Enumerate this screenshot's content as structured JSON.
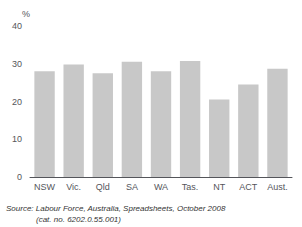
{
  "chart_data": {
    "type": "bar",
    "categories": [
      "NSW",
      "Vic.",
      "Qld",
      "SA",
      "WA",
      "Tas.",
      "NT",
      "ACT",
      "Aust."
    ],
    "values": [
      28.0,
      29.8,
      27.5,
      30.5,
      28.0,
      30.7,
      20.5,
      24.5,
      28.7
    ],
    "color": "#c8c8c8",
    "ylabel": "%",
    "ylim": [
      0,
      40
    ],
    "yticks": [
      0,
      10,
      20,
      30,
      40
    ],
    "grid": false,
    "annotations": [
      "Source: Labour Force, Australia, Spreadsheets, October 2008",
      "(cat. no. 6202.0.55.001)"
    ]
  }
}
